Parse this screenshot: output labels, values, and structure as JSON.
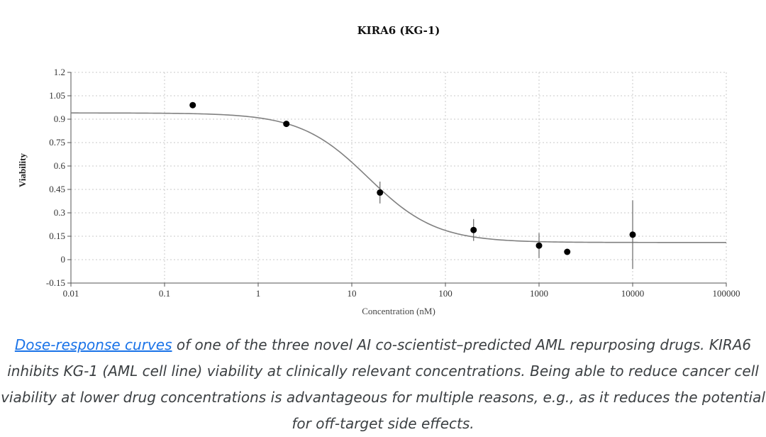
{
  "chart_data": {
    "type": "scatter",
    "title": "KIRA6 (KG-1)",
    "xlabel": "Concentration (nM)",
    "ylabel": "Viability",
    "xscale": "log",
    "xlim": [
      0.01,
      100000
    ],
    "ylim": [
      -0.15,
      1.2
    ],
    "grid": true,
    "x_ticks": [
      "0.01",
      "0.1",
      "1",
      "10",
      "100",
      "1000",
      "10000",
      "100000"
    ],
    "y_ticks": [
      "-0.15",
      "0",
      "0.15",
      "0.3",
      "0.45",
      "0.6",
      "0.75",
      "0.9",
      "1.05",
      "1.2"
    ],
    "series": [
      {
        "points": [
          {
            "x": 0.2,
            "y": 0.99,
            "err": 0
          },
          {
            "x": 2,
            "y": 0.87,
            "err": 0
          },
          {
            "x": 20,
            "y": 0.43,
            "err": 0.07
          },
          {
            "x": 200,
            "y": 0.19,
            "err": 0.07
          },
          {
            "x": 1000,
            "y": 0.09,
            "err": 0.08
          },
          {
            "x": 2000,
            "y": 0.05,
            "err": 0
          },
          {
            "x": 10000,
            "y": 0.16,
            "err": 0.22
          }
        ]
      }
    ],
    "fit_curve": {
      "top": 0.94,
      "bottom": 0.11,
      "ic50": 15,
      "hill": 1.2
    }
  },
  "caption": {
    "link_text": "Dose-response curves",
    "text": " of one of the three novel AI co-scientist–predicted AML repurposing drugs. KIRA6 inhibits KG-1 (AML cell line) viability at clinically relevant concentrations. Being able to reduce cancer cell viability at lower drug concentrations is advantageous for multiple reasons, e.g., as it reduces the potential for off-target side effects."
  },
  "colors": {
    "curve": "#808080",
    "points": "#000000",
    "grid": "#c8c8c8",
    "link": "#1a73e8"
  }
}
